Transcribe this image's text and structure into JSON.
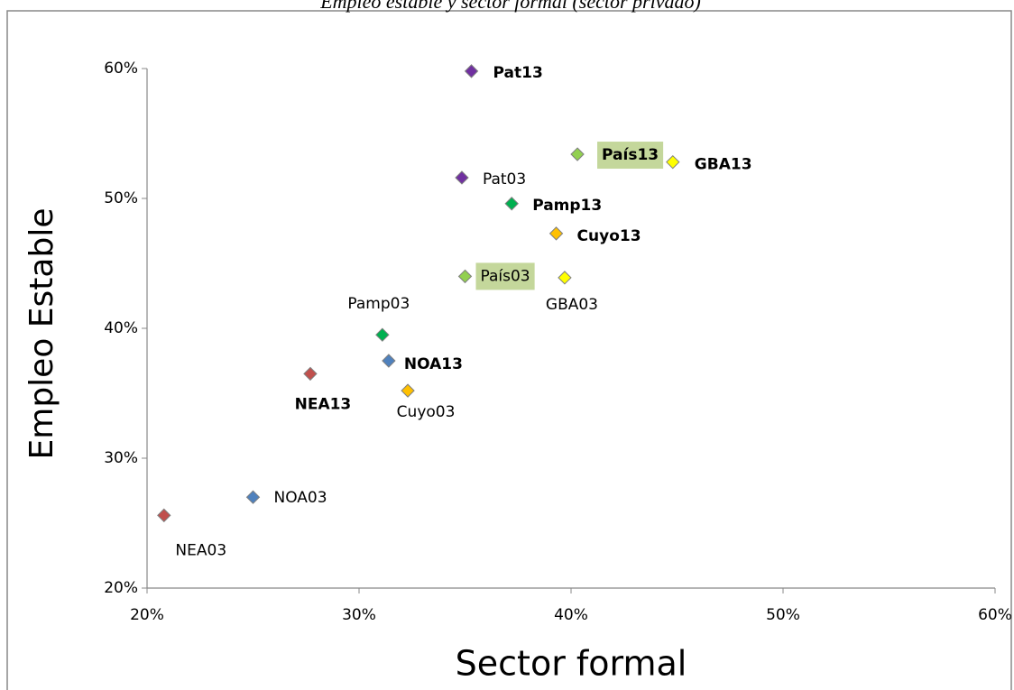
{
  "chart_data": {
    "type": "scatter",
    "title": "Empleo estable y sector formal (sector privado)",
    "x_label": "Sector formal",
    "y_label": "Empleo Estable",
    "xlim": [
      20,
      60
    ],
    "ylim": [
      20,
      60
    ],
    "xticks": [
      {
        "value": 20,
        "label": "20%"
      },
      {
        "value": 30,
        "label": "30%"
      },
      {
        "value": 40,
        "label": "40%"
      },
      {
        "value": 50,
        "label": "50%"
      },
      {
        "value": 60,
        "label": "60%"
      }
    ],
    "yticks": [
      {
        "value": 20,
        "label": "20%"
      },
      {
        "value": 30,
        "label": "30%"
      },
      {
        "value": 40,
        "label": "40%"
      },
      {
        "value": 50,
        "label": "50%"
      },
      {
        "value": 60,
        "label": "60%"
      }
    ],
    "grid": false,
    "series": [
      {
        "name": "Pat13",
        "color": "#7030a0",
        "bold": true,
        "x": [
          35.3
        ],
        "values": [
          59.8
        ]
      },
      {
        "name": "País13",
        "color": "#92d050",
        "bold": true,
        "highlight": "#c4d79b",
        "x": [
          40.3
        ],
        "values": [
          53.4
        ]
      },
      {
        "name": "GBA13",
        "color": "#ffff00",
        "bold": true,
        "x": [
          44.8
        ],
        "values": [
          52.8
        ]
      },
      {
        "name": "Pat03",
        "color": "#7030a0",
        "bold": false,
        "x": [
          34.85
        ],
        "values": [
          51.6
        ]
      },
      {
        "name": "Pamp13",
        "color": "#00b050",
        "bold": true,
        "x": [
          37.2
        ],
        "values": [
          49.6
        ]
      },
      {
        "name": "Cuyo13",
        "color": "#ffc000",
        "bold": true,
        "x": [
          39.3
        ],
        "values": [
          47.3
        ]
      },
      {
        "name": "País03",
        "color": "#92d050",
        "bold": false,
        "highlight": "#c4d79b",
        "x": [
          35.0
        ],
        "values": [
          44.0
        ]
      },
      {
        "name": "GBA03",
        "color": "#ffff00",
        "bold": false,
        "x": [
          39.7
        ],
        "values": [
          43.9
        ]
      },
      {
        "name": "Pamp03",
        "color": "#00b050",
        "bold": false,
        "x": [
          31.1
        ],
        "values": [
          39.5
        ]
      },
      {
        "name": "NOA13",
        "color": "#4f81bd",
        "bold": true,
        "x": [
          31.4
        ],
        "values": [
          37.5
        ]
      },
      {
        "name": "NEA13",
        "color": "#c0504d",
        "bold": true,
        "x": [
          27.7
        ],
        "values": [
          36.5
        ]
      },
      {
        "name": "Cuyo03",
        "color": "#ffc000",
        "bold": false,
        "x": [
          32.3
        ],
        "values": [
          35.2
        ]
      },
      {
        "name": "NOA03",
        "color": "#4f81bd",
        "bold": false,
        "x": [
          25.0
        ],
        "values": [
          27.0
        ]
      },
      {
        "name": "NEA03",
        "color": "#c0504d",
        "bold": false,
        "x": [
          20.8
        ],
        "values": [
          25.6
        ]
      }
    ]
  }
}
